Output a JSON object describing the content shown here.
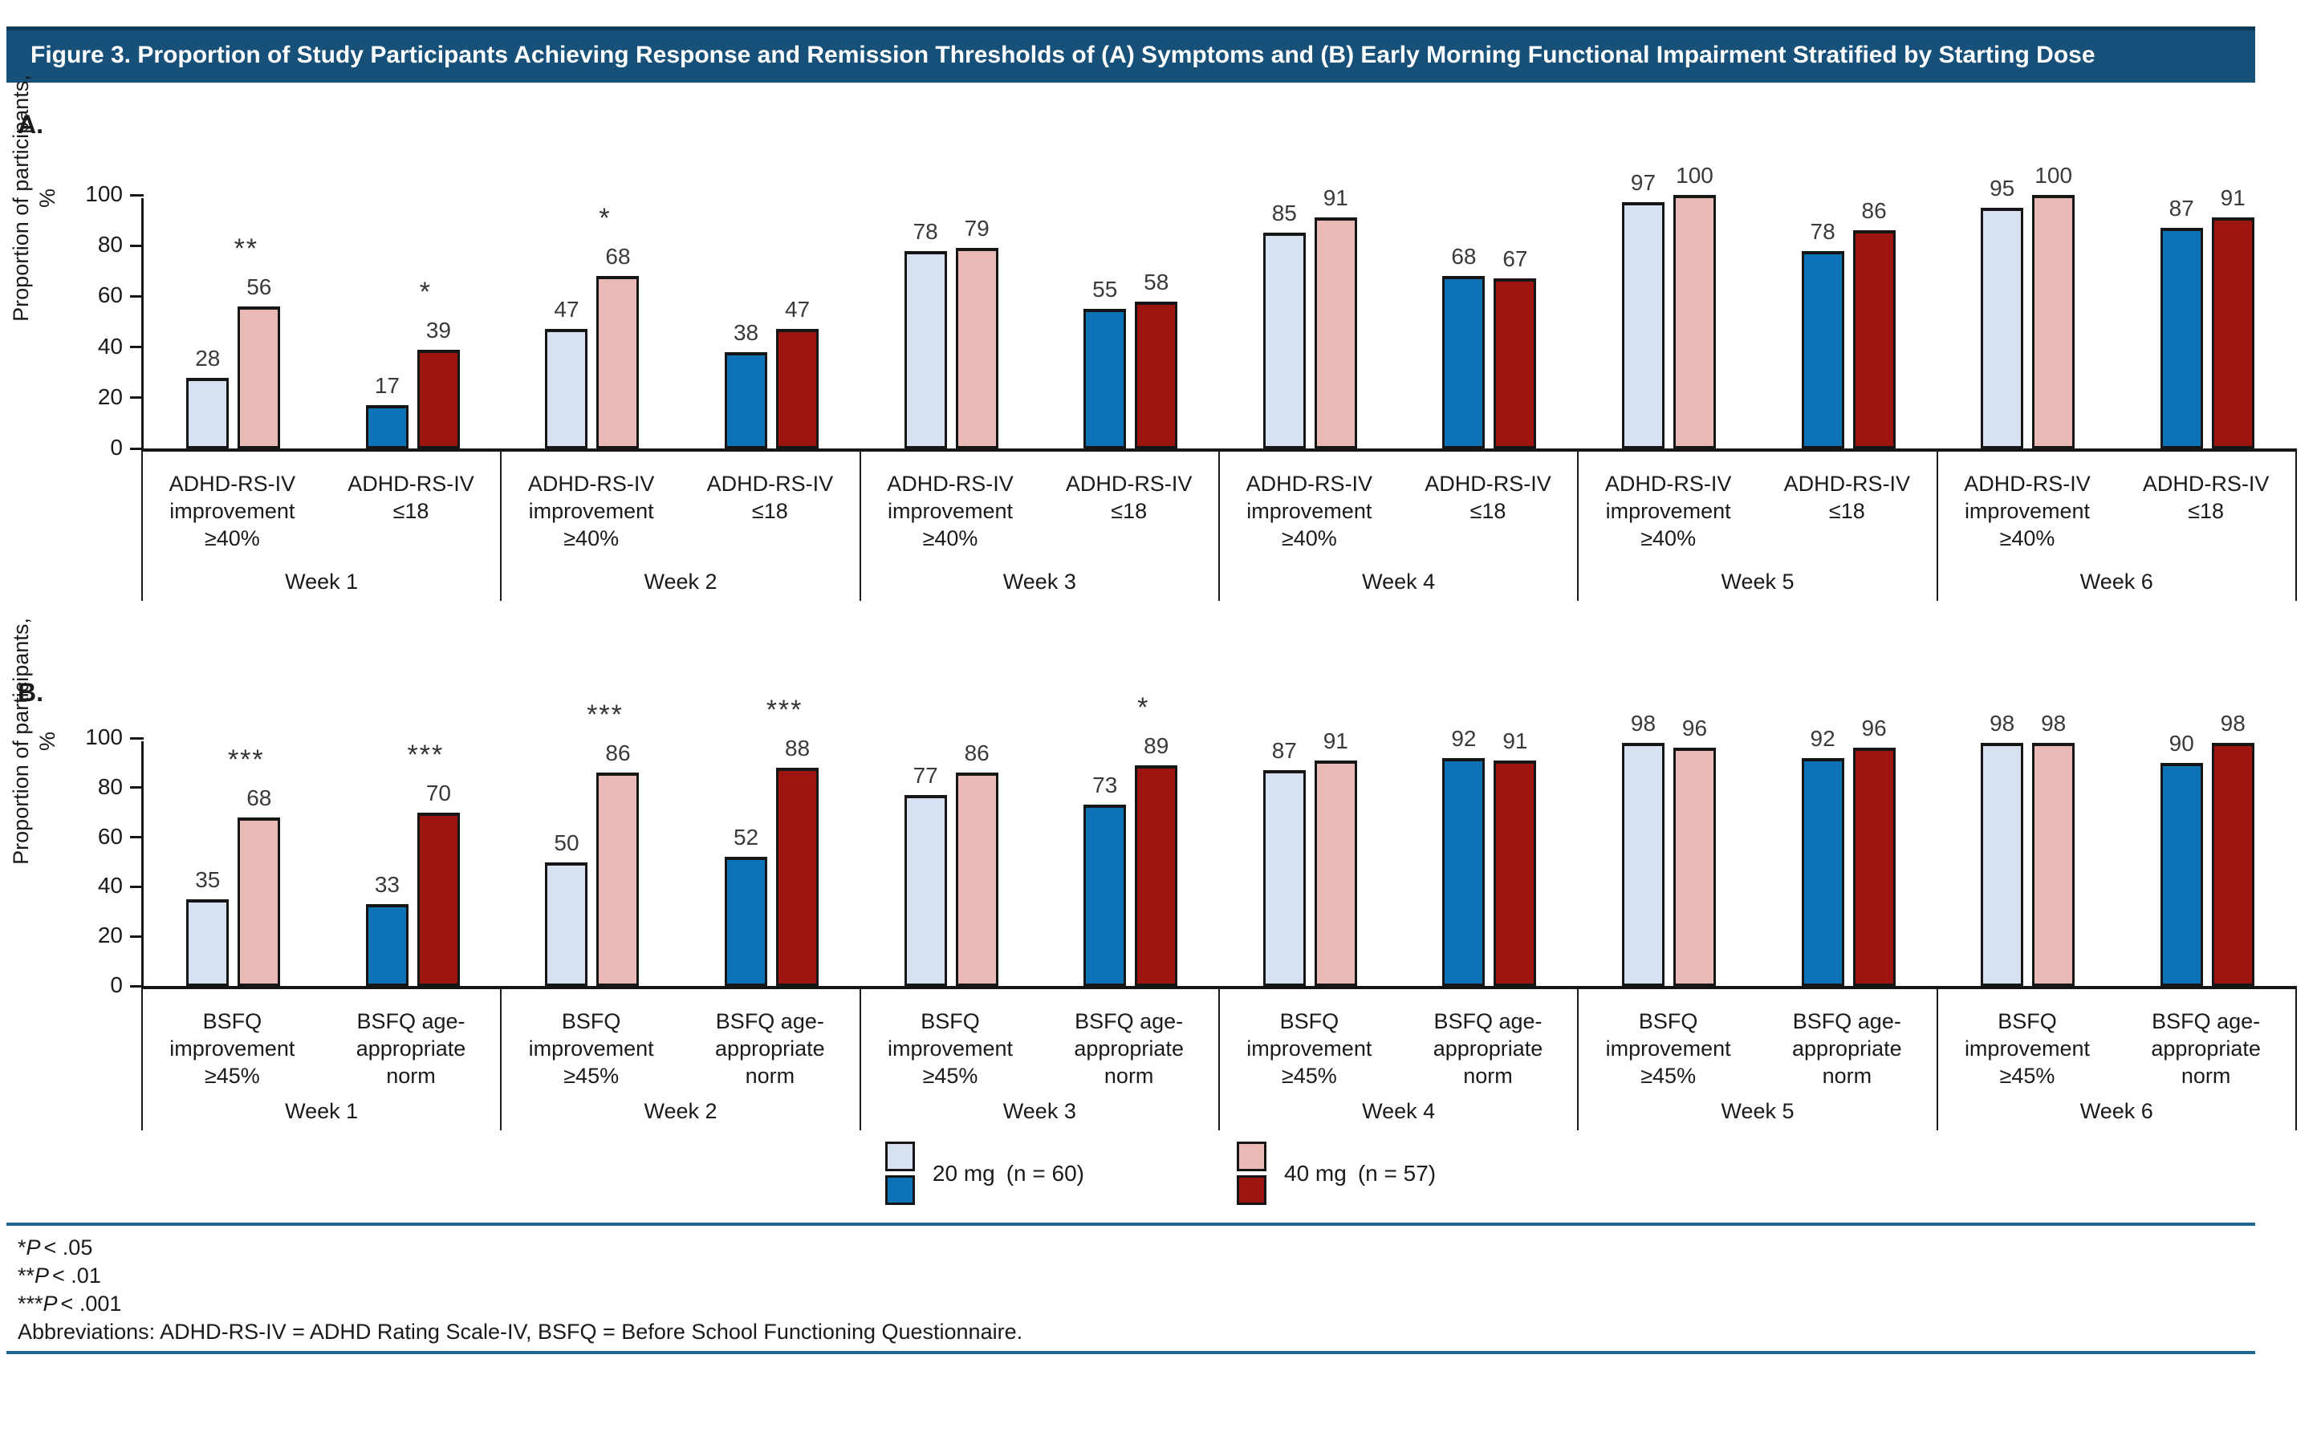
{
  "figure": {
    "title": "Figure 3. Proportion of Study Participants Achieving Response and Remission Thresholds of (A) Symptoms and (B) Early Morning Functional Impairment Stratified by Starting Dose"
  },
  "colors": {
    "header_bg": "#175078",
    "header_top": "#0e3a58",
    "rule_blue": "#1e6590",
    "light_blue": "#d6e2f2",
    "blue": "#0e73b6",
    "pink": "#e9bab5",
    "dark_red": "#9c1510",
    "bar_border": "#161616"
  },
  "legend": {
    "items": [
      {
        "label": "20 mg",
        "n_text": "(n = 60)",
        "swatches": [
          "light_blue",
          "blue"
        ]
      },
      {
        "label": "40 mg",
        "n_text": "(n = 57)",
        "swatches": [
          "pink",
          "dark_red"
        ]
      }
    ]
  },
  "footnotes": {
    "lines": [
      {
        "stars": "*",
        "p": "P",
        "rest": "< .05"
      },
      {
        "stars": "**",
        "p": "P",
        "rest": "< .01"
      },
      {
        "stars": "***",
        "p": "P",
        "rest": "< .001"
      }
    ],
    "abbreviations": "Abbreviations: ADHD-RS-IV = ADHD Rating Scale-IV, BSFQ = Before School Functioning Questionnaire."
  },
  "chart_data": [
    {
      "id": "a",
      "type": "bar",
      "panel_label": "A.",
      "ylabel_line1": "Proportion of participants,",
      "ylabel_line2": "%",
      "ylim": [
        0,
        100
      ],
      "yticks": [
        0,
        20,
        40,
        60,
        80,
        100
      ],
      "grid": false,
      "legend_position": "below-panel-b",
      "series_names": [
        "20 mg",
        "40 mg"
      ],
      "weeks": [
        {
          "label": "Week 1",
          "groups": [
            {
              "category_lines": [
                "ADHD-RS-IV",
                "improvement",
                "≥40%"
              ],
              "variant": "light",
              "values": [
                28,
                56
              ],
              "sig": "**"
            },
            {
              "category_lines": [
                "ADHD-RS-IV",
                "≤18"
              ],
              "variant": "dark",
              "values": [
                17,
                39
              ],
              "sig": "*"
            }
          ]
        },
        {
          "label": "Week 2",
          "groups": [
            {
              "category_lines": [
                "ADHD-RS-IV",
                "improvement",
                "≥40%"
              ],
              "variant": "light",
              "values": [
                47,
                68
              ],
              "sig": "*"
            },
            {
              "category_lines": [
                "ADHD-RS-IV",
                "≤18"
              ],
              "variant": "dark",
              "values": [
                38,
                47
              ],
              "sig": null
            }
          ]
        },
        {
          "label": "Week 3",
          "groups": [
            {
              "category_lines": [
                "ADHD-RS-IV",
                "improvement",
                "≥40%"
              ],
              "variant": "light",
              "values": [
                78,
                79
              ],
              "sig": null
            },
            {
              "category_lines": [
                "ADHD-RS-IV",
                "≤18"
              ],
              "variant": "dark",
              "values": [
                55,
                58
              ],
              "sig": null
            }
          ]
        },
        {
          "label": "Week 4",
          "groups": [
            {
              "category_lines": [
                "ADHD-RS-IV",
                "improvement",
                "≥40%"
              ],
              "variant": "light",
              "values": [
                85,
                91
              ],
              "sig": null
            },
            {
              "category_lines": [
                "ADHD-RS-IV",
                "≤18"
              ],
              "variant": "dark",
              "values": [
                68,
                67
              ],
              "sig": null
            }
          ]
        },
        {
          "label": "Week 5",
          "groups": [
            {
              "category_lines": [
                "ADHD-RS-IV",
                "improvement",
                "≥40%"
              ],
              "variant": "light",
              "values": [
                97,
                100
              ],
              "sig": null
            },
            {
              "category_lines": [
                "ADHD-RS-IV",
                "≤18"
              ],
              "variant": "dark",
              "values": [
                78,
                86
              ],
              "sig": null
            }
          ]
        },
        {
          "label": "Week 6",
          "groups": [
            {
              "category_lines": [
                "ADHD-RS-IV",
                "improvement",
                "≥40%"
              ],
              "variant": "light",
              "values": [
                95,
                100
              ],
              "sig": null
            },
            {
              "category_lines": [
                "ADHD-RS-IV",
                "≤18"
              ],
              "variant": "dark",
              "values": [
                87,
                91
              ],
              "sig": null
            }
          ]
        }
      ]
    },
    {
      "id": "b",
      "type": "bar",
      "panel_label": "B.",
      "ylabel_line1": "Proportion of participants,",
      "ylabel_line2": "%",
      "ylim": [
        0,
        100
      ],
      "yticks": [
        0,
        20,
        40,
        60,
        80,
        100
      ],
      "grid": false,
      "series_names": [
        "20 mg",
        "40 mg"
      ],
      "weeks": [
        {
          "label": "Week 1",
          "groups": [
            {
              "category_lines": [
                "BSFQ",
                "improvement",
                "≥45%"
              ],
              "variant": "light",
              "values": [
                35,
                68
              ],
              "sig": "***"
            },
            {
              "category_lines": [
                "BSFQ age-",
                "appropriate",
                "norm"
              ],
              "variant": "dark",
              "values": [
                33,
                70
              ],
              "sig": "***"
            }
          ]
        },
        {
          "label": "Week 2",
          "groups": [
            {
              "category_lines": [
                "BSFQ",
                "improvement",
                "≥45%"
              ],
              "variant": "light",
              "values": [
                50,
                86
              ],
              "sig": "***"
            },
            {
              "category_lines": [
                "BSFQ age-",
                "appropriate",
                "norm"
              ],
              "variant": "dark",
              "values": [
                52,
                88
              ],
              "sig": "***"
            }
          ]
        },
        {
          "label": "Week 3",
          "groups": [
            {
              "category_lines": [
                "BSFQ",
                "improvement",
                "≥45%"
              ],
              "variant": "light",
              "values": [
                77,
                86
              ],
              "sig": null
            },
            {
              "category_lines": [
                "BSFQ age-",
                "appropriate",
                "norm"
              ],
              "variant": "dark",
              "values": [
                73,
                89
              ],
              "sig": "*"
            }
          ]
        },
        {
          "label": "Week 4",
          "groups": [
            {
              "category_lines": [
                "BSFQ",
                "improvement",
                "≥45%"
              ],
              "variant": "light",
              "values": [
                87,
                91
              ],
              "sig": null
            },
            {
              "category_lines": [
                "BSFQ age-",
                "appropriate",
                "norm"
              ],
              "variant": "dark",
              "values": [
                92,
                91
              ],
              "sig": null
            }
          ]
        },
        {
          "label": "Week 5",
          "groups": [
            {
              "category_lines": [
                "BSFQ",
                "improvement",
                "≥45%"
              ],
              "variant": "light",
              "values": [
                98,
                96
              ],
              "sig": null
            },
            {
              "category_lines": [
                "BSFQ age-",
                "appropriate",
                "norm"
              ],
              "variant": "dark",
              "values": [
                92,
                96
              ],
              "sig": null
            }
          ]
        },
        {
          "label": "Week 6",
          "groups": [
            {
              "category_lines": [
                "BSFQ",
                "improvement",
                "≥45%"
              ],
              "variant": "light",
              "values": [
                98,
                98
              ],
              "sig": null
            },
            {
              "category_lines": [
                "BSFQ age-",
                "appropriate",
                "norm"
              ],
              "variant": "dark",
              "values": [
                90,
                98
              ],
              "sig": null
            }
          ]
        }
      ]
    }
  ]
}
